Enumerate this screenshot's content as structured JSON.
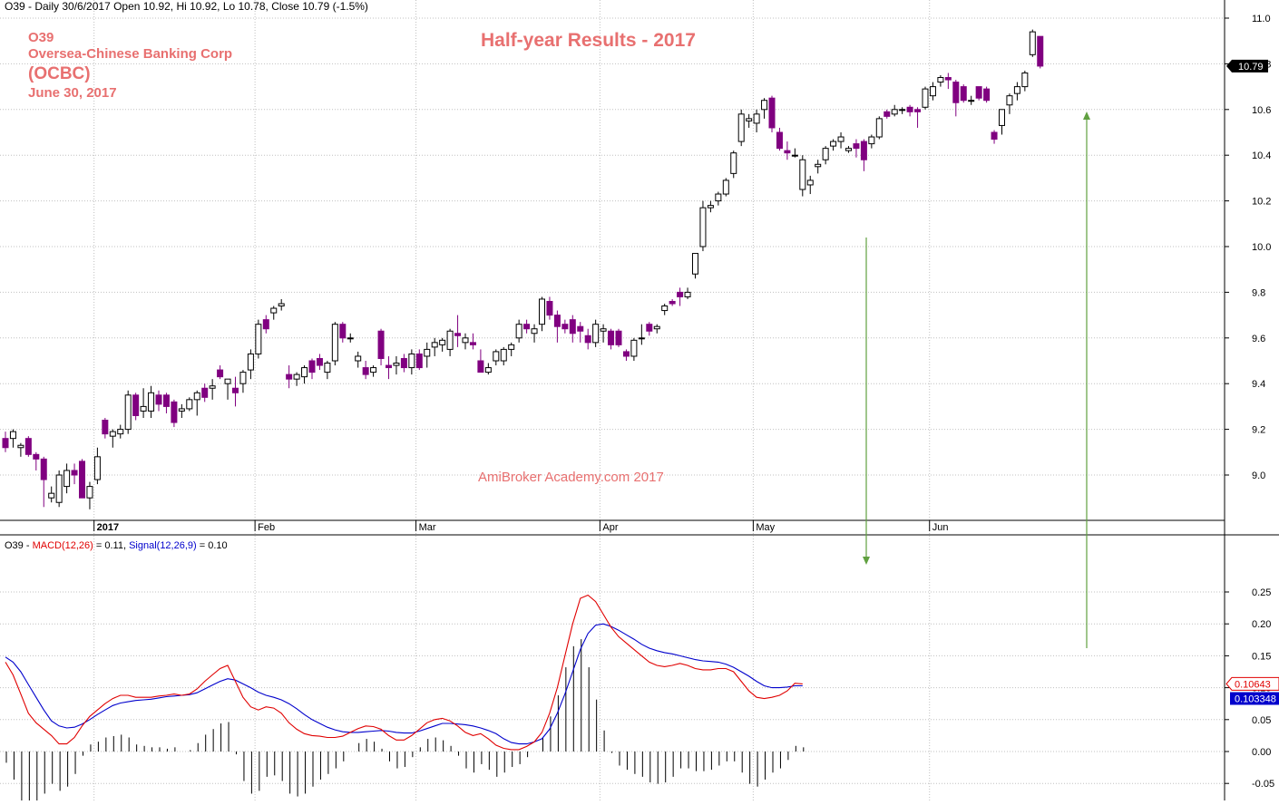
{
  "header": {
    "symbol": "O39",
    "info": "O39 - Daily 30/6/2017 Open 10.92, Hi 10.92, Lo 10.78, Close 10.79 (-1.5%)"
  },
  "annotation": {
    "lines": [
      "O39",
      "Oversea-Chinese Banking Corp",
      "(OCBC)",
      "June 30, 2017"
    ],
    "title": "Half-year Results - 2017",
    "watermark": "AmiBroker Academy.com  2017"
  },
  "colors": {
    "down_candle": "#800080",
    "up_candle": "#ffffff",
    "macd_line": "#e00000",
    "signal_line": "#0000cc",
    "histogram": "#000000",
    "annotation_text": "#e87070",
    "arrow": "#60a040",
    "grid": "#c0c0c0"
  },
  "macd_header": {
    "prefix": "O39 - ",
    "macd_label": "MACD(12,26)",
    "macd_value": " = 0.11, ",
    "signal_label": "Signal(12,26,9)",
    "signal_value": " = 0.10"
  },
  "chart_data": [
    {
      "type": "candlestick",
      "title": "Half-year Results - 2017",
      "ylim": [
        8.8,
        11.0
      ],
      "y_ticks": [
        9.0,
        9.2,
        9.4,
        9.6,
        9.8,
        10.0,
        10.2,
        10.4,
        10.6,
        "10.8",
        11.0
      ],
      "x_labels": [
        "2017",
        "Feb",
        "Mar",
        "Apr",
        "May",
        "Jun"
      ],
      "last_price_label": "10.79",
      "last_price": 10.79,
      "ohlc": [
        [
          9.16,
          9.19,
          9.1,
          9.12
        ],
        [
          9.16,
          9.2,
          9.12,
          9.19
        ],
        [
          9.12,
          9.14,
          9.08,
          9.13
        ],
        [
          9.16,
          9.17,
          9.08,
          9.09
        ],
        [
          9.09,
          9.1,
          9.02,
          9.07
        ],
        [
          9.07,
          9.08,
          8.86,
          8.98
        ],
        [
          8.9,
          8.95,
          8.88,
          8.92
        ],
        [
          8.88,
          9.02,
          8.86,
          9.0
        ],
        [
          8.95,
          9.05,
          8.92,
          9.02
        ],
        [
          9.02,
          9.05,
          8.96,
          9.0
        ],
        [
          9.06,
          9.07,
          8.9,
          8.9
        ],
        [
          8.9,
          8.97,
          8.85,
          8.95
        ],
        [
          8.98,
          9.12,
          8.96,
          9.08
        ],
        [
          9.24,
          9.25,
          9.16,
          9.18
        ],
        [
          9.17,
          9.2,
          9.12,
          9.19
        ],
        [
          9.18,
          9.22,
          9.16,
          9.2
        ],
        [
          9.2,
          9.37,
          9.18,
          9.35
        ],
        [
          9.35,
          9.36,
          9.24,
          9.26
        ],
        [
          9.28,
          9.38,
          9.25,
          9.3
        ],
        [
          9.28,
          9.39,
          9.25,
          9.36
        ],
        [
          9.35,
          9.37,
          9.28,
          9.31
        ],
        [
          9.35,
          9.36,
          9.27,
          9.3
        ],
        [
          9.32,
          9.33,
          9.21,
          9.23
        ],
        [
          9.28,
          9.31,
          9.25,
          9.29
        ],
        [
          9.29,
          9.34,
          9.28,
          9.33
        ],
        [
          9.33,
          9.37,
          9.26,
          9.36
        ],
        [
          9.38,
          9.4,
          9.32,
          9.34
        ],
        [
          9.38,
          9.42,
          9.33,
          9.39
        ],
        [
          9.46,
          9.48,
          9.42,
          9.43
        ],
        [
          9.4,
          9.42,
          9.33,
          9.42
        ],
        [
          9.38,
          9.43,
          9.3,
          9.36
        ],
        [
          9.4,
          9.46,
          9.36,
          9.45
        ],
        [
          9.46,
          9.55,
          9.42,
          9.53
        ],
        [
          9.53,
          9.68,
          9.51,
          9.66
        ],
        [
          9.68,
          9.7,
          9.62,
          9.64
        ],
        [
          9.71,
          9.74,
          9.68,
          9.73
        ],
        [
          9.74,
          9.77,
          9.72,
          9.75
        ],
        [
          9.44,
          9.48,
          9.38,
          9.42
        ],
        [
          9.42,
          9.45,
          9.39,
          9.44
        ],
        [
          9.43,
          9.48,
          9.4,
          9.47
        ],
        [
          9.5,
          9.51,
          9.42,
          9.45
        ],
        [
          9.51,
          9.53,
          9.46,
          9.48
        ],
        [
          9.45,
          9.5,
          9.42,
          9.49
        ],
        [
          9.5,
          9.67,
          9.48,
          9.66
        ],
        [
          9.66,
          9.67,
          9.58,
          9.6
        ],
        [
          9.6,
          9.62,
          9.58,
          9.6
        ],
        [
          9.5,
          9.54,
          9.47,
          9.52
        ],
        [
          9.47,
          9.5,
          9.42,
          9.44
        ],
        [
          9.45,
          9.48,
          9.43,
          9.47
        ],
        [
          9.63,
          9.64,
          9.48,
          9.51
        ],
        [
          9.48,
          9.52,
          9.42,
          9.47
        ],
        [
          9.48,
          9.52,
          9.44,
          9.49
        ],
        [
          9.51,
          9.53,
          9.45,
          9.47
        ],
        [
          9.47,
          9.55,
          9.44,
          9.53
        ],
        [
          9.53,
          9.55,
          9.46,
          9.47
        ],
        [
          9.52,
          9.58,
          9.47,
          9.55
        ],
        [
          9.56,
          9.6,
          9.52,
          9.58
        ],
        [
          9.57,
          9.6,
          9.54,
          9.59
        ],
        [
          9.55,
          9.64,
          9.52,
          9.63
        ],
        [
          9.62,
          9.7,
          9.56,
          9.61
        ],
        [
          9.58,
          9.62,
          9.55,
          9.6
        ],
        [
          9.58,
          9.62,
          9.55,
          9.57
        ],
        [
          9.5,
          9.55,
          9.45,
          9.45
        ],
        [
          9.45,
          9.49,
          9.44,
          9.47
        ],
        [
          9.5,
          9.55,
          9.48,
          9.54
        ],
        [
          9.5,
          9.56,
          9.48,
          9.55
        ],
        [
          9.55,
          9.58,
          9.52,
          9.57
        ],
        [
          9.6,
          9.68,
          9.58,
          9.66
        ],
        [
          9.66,
          9.68,
          9.62,
          9.64
        ],
        [
          9.62,
          9.66,
          9.58,
          9.64
        ],
        [
          9.66,
          9.78,
          9.63,
          9.77
        ],
        [
          9.76,
          9.78,
          9.68,
          9.7
        ],
        [
          9.7,
          9.72,
          9.58,
          9.65
        ],
        [
          9.66,
          9.68,
          9.62,
          9.64
        ],
        [
          9.68,
          9.7,
          9.58,
          9.62
        ],
        [
          9.65,
          9.67,
          9.58,
          9.63
        ],
        [
          9.61,
          9.64,
          9.55,
          9.58
        ],
        [
          9.58,
          9.68,
          9.56,
          9.66
        ],
        [
          9.63,
          9.66,
          9.58,
          9.64
        ],
        [
          9.63,
          9.64,
          9.55,
          9.57
        ],
        [
          9.63,
          9.64,
          9.56,
          9.57
        ],
        [
          9.54,
          9.55,
          9.5,
          9.52
        ],
        [
          9.52,
          9.6,
          9.5,
          9.59
        ],
        [
          9.6,
          9.66,
          9.57,
          9.6
        ],
        [
          9.66,
          9.67,
          9.61,
          9.63
        ],
        [
          9.64,
          9.66,
          9.62,
          9.65
        ],
        [
          9.72,
          9.75,
          9.7,
          9.74
        ],
        [
          9.76,
          9.77,
          9.74,
          9.75
        ],
        [
          9.8,
          9.82,
          9.74,
          9.78
        ],
        [
          9.78,
          9.82,
          9.77,
          9.8
        ],
        [
          9.88,
          9.97,
          9.86,
          9.97
        ],
        [
          10.0,
          10.2,
          9.98,
          10.17
        ],
        [
          10.17,
          10.2,
          10.15,
          10.18
        ],
        [
          10.2,
          10.24,
          10.18,
          10.23
        ],
        [
          10.23,
          10.3,
          10.22,
          10.29
        ],
        [
          10.32,
          10.42,
          10.3,
          10.41
        ],
        [
          10.46,
          10.6,
          10.44,
          10.58
        ],
        [
          10.55,
          10.58,
          10.52,
          10.56
        ],
        [
          10.54,
          10.6,
          10.5,
          10.58
        ],
        [
          10.6,
          10.65,
          10.56,
          10.64
        ],
        [
          10.65,
          10.66,
          10.5,
          10.52
        ],
        [
          10.5,
          10.52,
          10.42,
          10.43
        ],
        [
          10.42,
          10.46,
          10.38,
          10.41
        ],
        [
          10.4,
          10.43,
          10.39,
          10.4
        ],
        [
          10.25,
          10.4,
          10.22,
          10.38
        ],
        [
          10.27,
          10.31,
          10.23,
          10.29
        ],
        [
          10.35,
          10.38,
          10.32,
          10.36
        ],
        [
          10.38,
          10.44,
          10.36,
          10.43
        ],
        [
          10.44,
          10.47,
          10.42,
          10.46
        ],
        [
          10.46,
          10.5,
          10.43,
          10.48
        ],
        [
          10.42,
          10.44,
          10.41,
          10.43
        ],
        [
          10.45,
          10.47,
          10.39,
          10.43
        ],
        [
          10.46,
          10.47,
          10.33,
          10.38
        ],
        [
          10.45,
          10.49,
          10.43,
          10.48
        ],
        [
          10.48,
          10.57,
          10.47,
          10.56
        ],
        [
          10.59,
          10.6,
          10.56,
          10.57
        ],
        [
          10.58,
          10.62,
          10.57,
          10.6
        ],
        [
          10.6,
          10.61,
          10.58,
          10.6
        ],
        [
          10.61,
          10.62,
          10.57,
          10.59
        ],
        [
          10.6,
          10.61,
          10.52,
          10.59
        ],
        [
          10.61,
          10.7,
          10.6,
          10.69
        ],
        [
          10.66,
          10.72,
          10.64,
          10.7
        ],
        [
          10.72,
          10.75,
          10.7,
          10.74
        ],
        [
          10.74,
          10.76,
          10.69,
          10.73
        ],
        [
          10.72,
          10.73,
          10.57,
          10.63
        ],
        [
          10.7,
          10.71,
          10.63,
          10.64
        ],
        [
          10.64,
          10.66,
          10.62,
          10.64
        ],
        [
          10.7,
          10.7,
          10.64,
          10.65
        ],
        [
          10.69,
          10.7,
          10.63,
          10.64
        ],
        [
          10.5,
          10.51,
          10.45,
          10.47
        ],
        [
          10.53,
          10.6,
          10.49,
          10.6
        ],
        [
          10.62,
          10.67,
          10.58,
          10.66
        ],
        [
          10.67,
          10.72,
          10.64,
          10.7
        ],
        [
          10.7,
          10.77,
          10.68,
          10.76
        ],
        [
          10.84,
          10.95,
          10.83,
          10.94
        ],
        [
          10.92,
          10.92,
          10.78,
          10.79
        ]
      ]
    },
    {
      "type": "line",
      "title": "MACD(12,26) / Signal(12,26,9)",
      "ylim": [
        -0.06,
        0.27
      ],
      "y_ticks": [
        "0.25",
        "0.20",
        "0.15",
        "0.10",
        "0.05",
        "0.00",
        "-0.05"
      ],
      "series": [
        {
          "name": "MACD(12,26)",
          "value_label": "0.10643",
          "values": [
            0.14,
            0.12,
            0.09,
            0.06,
            0.045,
            0.035,
            0.025,
            0.012,
            0.012,
            0.022,
            0.04,
            0.055,
            0.065,
            0.075,
            0.083,
            0.088,
            0.088,
            0.085,
            0.085,
            0.085,
            0.087,
            0.088,
            0.09,
            0.088,
            0.09,
            0.098,
            0.11,
            0.12,
            0.13,
            0.135,
            0.11,
            0.085,
            0.07,
            0.065,
            0.07,
            0.068,
            0.06,
            0.045,
            0.035,
            0.028,
            0.025,
            0.024,
            0.022,
            0.022,
            0.024,
            0.03,
            0.036,
            0.04,
            0.039,
            0.035,
            0.025,
            0.018,
            0.018,
            0.025,
            0.035,
            0.045,
            0.05,
            0.052,
            0.048,
            0.04,
            0.03,
            0.025,
            0.028,
            0.02,
            0.01,
            0.005,
            0.003,
            0.003,
            0.008,
            0.015,
            0.03,
            0.06,
            0.1,
            0.15,
            0.2,
            0.24,
            0.245,
            0.235,
            0.215,
            0.195,
            0.18,
            0.17,
            0.16,
            0.15,
            0.14,
            0.135,
            0.133,
            0.135,
            0.138,
            0.135,
            0.13,
            0.128,
            0.128,
            0.13,
            0.13,
            0.125,
            0.11,
            0.095,
            0.085,
            0.083,
            0.085,
            0.088,
            0.095,
            0.107,
            0.106
          ]
        },
        {
          "name": "Signal(12,26,9)",
          "value_label": "0.103348",
          "values": [
            0.148,
            0.14,
            0.125,
            0.105,
            0.085,
            0.065,
            0.048,
            0.04,
            0.037,
            0.038,
            0.043,
            0.05,
            0.058,
            0.065,
            0.072,
            0.076,
            0.078,
            0.08,
            0.081,
            0.082,
            0.084,
            0.086,
            0.087,
            0.088,
            0.089,
            0.092,
            0.098,
            0.104,
            0.11,
            0.114,
            0.112,
            0.106,
            0.1,
            0.093,
            0.088,
            0.085,
            0.081,
            0.075,
            0.067,
            0.058,
            0.05,
            0.044,
            0.038,
            0.034,
            0.031,
            0.03,
            0.03,
            0.031,
            0.032,
            0.033,
            0.032,
            0.03,
            0.029,
            0.029,
            0.032,
            0.036,
            0.04,
            0.044,
            0.044,
            0.043,
            0.042,
            0.04,
            0.037,
            0.033,
            0.028,
            0.02,
            0.014,
            0.012,
            0.012,
            0.015,
            0.02,
            0.035,
            0.06,
            0.09,
            0.125,
            0.16,
            0.185,
            0.198,
            0.2,
            0.196,
            0.19,
            0.183,
            0.176,
            0.168,
            0.162,
            0.158,
            0.155,
            0.153,
            0.15,
            0.147,
            0.144,
            0.142,
            0.141,
            0.14,
            0.137,
            0.132,
            0.125,
            0.118,
            0.11,
            0.103,
            0.1,
            0.1,
            0.101,
            0.103,
            0.103
          ]
        }
      ],
      "histogram_name": "MACD - Signal"
    }
  ]
}
